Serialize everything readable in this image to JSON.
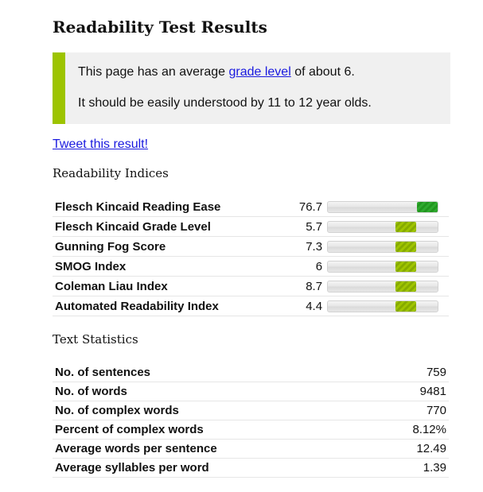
{
  "header": {
    "title": "Readability Test Results"
  },
  "summary": {
    "line1_prefix": "This page has an average ",
    "line1_link": "grade level",
    "line1_suffix": " of about 6.",
    "line2": "It should be easily understood by 11 to 12 year olds."
  },
  "share": {
    "tweet_label": "Tweet this result!"
  },
  "indices": {
    "title": "Readability Indices",
    "rows": [
      {
        "name": "Flesch Kincaid Reading Ease",
        "value": "76.7",
        "meter_level": 0.767,
        "meter_color": "#22961f"
      },
      {
        "name": "Flesch Kincaid Grade Level",
        "value": "5.7",
        "meter_level": 0.57,
        "meter_color": "#9fc400"
      },
      {
        "name": "Gunning Fog Score",
        "value": "7.3",
        "meter_level": 0.57,
        "meter_color": "#9fc400"
      },
      {
        "name": "SMOG Index",
        "value": "6",
        "meter_level": 0.57,
        "meter_color": "#9fc400"
      },
      {
        "name": "Coleman Liau Index",
        "value": "8.7",
        "meter_level": 0.57,
        "meter_color": "#9fc400"
      },
      {
        "name": "Automated Readability Index",
        "value": "4.4",
        "meter_level": 0.57,
        "meter_color": "#9fc400"
      }
    ]
  },
  "statistics": {
    "title": "Text Statistics",
    "rows": [
      {
        "name": "No. of sentences",
        "value": "759"
      },
      {
        "name": "No. of words",
        "value": "9481"
      },
      {
        "name": "No. of complex words",
        "value": "770"
      },
      {
        "name": "Percent of complex words",
        "value": "8.12%"
      },
      {
        "name": "Average words per sentence",
        "value": "12.49"
      },
      {
        "name": "Average syllables per word",
        "value": "1.39"
      }
    ]
  },
  "colors": {
    "accent_bar": "#9dc400",
    "link": "#1a1adf"
  }
}
